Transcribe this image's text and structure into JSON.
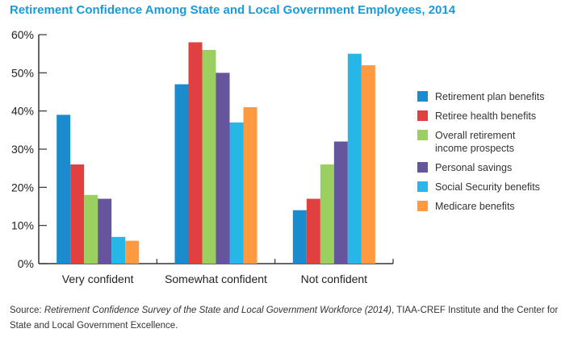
{
  "chart_data": {
    "type": "bar",
    "title": "Retirement Confidence Among State and Local Government Employees, 2014",
    "categories": [
      "Very confident",
      "Somewhat confident",
      "Not confident"
    ],
    "series": [
      {
        "name": "Retirement plan benefits",
        "color": "#1a8bcc",
        "values": [
          39,
          47,
          14
        ]
      },
      {
        "name": "Retiree health benefits",
        "color": "#e04040",
        "values": [
          26,
          58,
          17
        ]
      },
      {
        "name": "Overall retirement income prospects",
        "color": "#9bcf5f",
        "values": [
          18,
          56,
          26
        ]
      },
      {
        "name": "Personal savings",
        "color": "#66559c",
        "values": [
          17,
          50,
          32
        ]
      },
      {
        "name": "Social Security benefits",
        "color": "#26b6e8",
        "values": [
          7,
          37,
          55
        ]
      },
      {
        "name": "Medicare benefits",
        "color": "#ff9a40",
        "values": [
          6,
          41,
          52
        ]
      }
    ],
    "yticks": [
      "0%",
      "10%",
      "20%",
      "30%",
      "40%",
      "50%",
      "60%"
    ],
    "ylim": [
      0,
      60
    ],
    "grid": false,
    "legend": "right"
  },
  "source": {
    "prefix": "Source: ",
    "title": "Retirement Confidence Survey of the State and Local Government Workforce (2014)",
    "suffix": ", TIAA-CREF Institute and the Center for State and Local Government Excellence."
  }
}
